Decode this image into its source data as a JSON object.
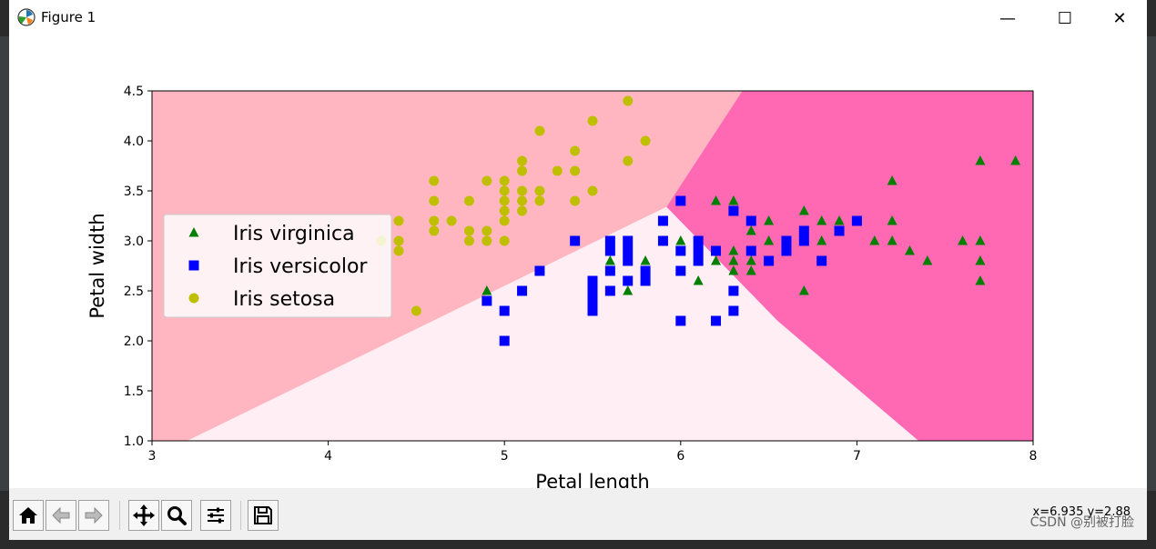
{
  "window": {
    "title": "Figure 1",
    "minimize": "—",
    "maximize": "☐",
    "close": "✕"
  },
  "colors": {
    "region_setosa": "#ffb6c1",
    "region_versicolor": "#ffeef4",
    "region_virginica": "#ff69b4",
    "virginica": "#007f00",
    "versicolor": "#0000ff",
    "setosa": "#bfbf00"
  },
  "toolbar": {
    "coords": "x=6.935 y=2.88",
    "buttons": [
      "home",
      "back",
      "forward",
      "pan",
      "zoom",
      "configure",
      "save"
    ]
  },
  "watermark": "CSDN @别被打脸",
  "chart_data": {
    "type": "scatter",
    "xlabel": "Petal length",
    "ylabel": "Petal width",
    "xlim": [
      3,
      8
    ],
    "ylim": [
      1.0,
      4.5
    ],
    "xticks": [
      "3",
      "4",
      "5",
      "6",
      "7",
      "8"
    ],
    "yticks": [
      "1.0",
      "1.5",
      "2.0",
      "2.5",
      "3.0",
      "3.5",
      "4.0",
      "4.5"
    ],
    "legend_position": "center-left",
    "decision_regions": {
      "setosa": [
        [
          3.0,
          1.0
        ],
        [
          3.2,
          1.0
        ],
        [
          5.92,
          3.34
        ],
        [
          6.35,
          4.5
        ],
        [
          3.0,
          4.5
        ]
      ],
      "versicolor": [
        [
          3.2,
          1.0
        ],
        [
          7.35,
          1.0
        ],
        [
          6.55,
          2.2
        ],
        [
          5.92,
          3.34
        ]
      ],
      "virginica": [
        [
          5.92,
          3.34
        ],
        [
          6.55,
          2.2
        ],
        [
          7.35,
          1.0
        ],
        [
          8.0,
          1.0
        ],
        [
          8.0,
          4.5
        ],
        [
          6.35,
          4.5
        ]
      ]
    },
    "series": [
      {
        "name": "Iris virginica",
        "marker": "triangle",
        "points": [
          [
            4.9,
            2.5
          ],
          [
            5.6,
            2.8
          ],
          [
            5.7,
            2.5
          ],
          [
            5.8,
            2.8
          ],
          [
            6.0,
            3.0
          ],
          [
            6.0,
            2.2
          ],
          [
            6.1,
            3.0
          ],
          [
            6.1,
            2.6
          ],
          [
            6.2,
            3.4
          ],
          [
            6.2,
            2.8
          ],
          [
            6.3,
            3.4
          ],
          [
            6.3,
            3.3
          ],
          [
            6.3,
            2.9
          ],
          [
            6.3,
            2.8
          ],
          [
            6.3,
            2.7
          ],
          [
            6.4,
            3.1
          ],
          [
            6.4,
            2.8
          ],
          [
            6.4,
            2.7
          ],
          [
            6.4,
            3.2
          ],
          [
            6.5,
            3.2
          ],
          [
            6.5,
            3.0
          ],
          [
            6.7,
            3.3
          ],
          [
            6.7,
            3.1
          ],
          [
            6.7,
            2.5
          ],
          [
            6.7,
            3.0
          ],
          [
            6.8,
            3.2
          ],
          [
            6.8,
            3.0
          ],
          [
            6.9,
            3.2
          ],
          [
            7.1,
            3.0
          ],
          [
            7.2,
            3.6
          ],
          [
            7.2,
            3.2
          ],
          [
            7.2,
            3.0
          ],
          [
            7.3,
            2.9
          ],
          [
            7.4,
            2.8
          ],
          [
            7.6,
            3.0
          ],
          [
            7.7,
            3.8
          ],
          [
            7.7,
            3.0
          ],
          [
            7.7,
            2.8
          ],
          [
            7.7,
            2.6
          ],
          [
            7.9,
            3.8
          ]
        ]
      },
      {
        "name": "Iris versicolor",
        "marker": "square",
        "points": [
          [
            4.9,
            2.4
          ],
          [
            5.0,
            2.3
          ],
          [
            5.0,
            2.0
          ],
          [
            5.1,
            2.5
          ],
          [
            5.2,
            2.7
          ],
          [
            5.4,
            3.0
          ],
          [
            5.5,
            2.6
          ],
          [
            5.5,
            2.5
          ],
          [
            5.5,
            2.4
          ],
          [
            5.5,
            2.3
          ],
          [
            5.6,
            3.0
          ],
          [
            5.6,
            2.9
          ],
          [
            5.6,
            2.7
          ],
          [
            5.6,
            2.5
          ],
          [
            5.7,
            3.0
          ],
          [
            5.7,
            2.9
          ],
          [
            5.7,
            2.8
          ],
          [
            5.7,
            2.6
          ],
          [
            5.8,
            2.7
          ],
          [
            5.8,
            2.6
          ],
          [
            5.9,
            3.2
          ],
          [
            5.9,
            3.0
          ],
          [
            6.0,
            3.4
          ],
          [
            6.0,
            2.9
          ],
          [
            6.0,
            2.7
          ],
          [
            6.0,
            2.2
          ],
          [
            6.1,
            3.0
          ],
          [
            6.1,
            2.9
          ],
          [
            6.1,
            2.8
          ],
          [
            6.2,
            2.9
          ],
          [
            6.2,
            2.2
          ],
          [
            6.3,
            3.3
          ],
          [
            6.3,
            2.5
          ],
          [
            6.3,
            2.3
          ],
          [
            6.4,
            3.2
          ],
          [
            6.4,
            2.9
          ],
          [
            6.5,
            2.8
          ],
          [
            6.6,
            3.0
          ],
          [
            6.6,
            2.9
          ],
          [
            6.7,
            3.1
          ],
          [
            6.7,
            3.0
          ],
          [
            6.8,
            2.8
          ],
          [
            6.9,
            3.1
          ],
          [
            7.0,
            3.2
          ]
        ]
      },
      {
        "name": "Iris setosa",
        "marker": "circle",
        "points": [
          [
            4.3,
            3.0
          ],
          [
            4.4,
            3.2
          ],
          [
            4.4,
            3.0
          ],
          [
            4.4,
            2.9
          ],
          [
            4.5,
            2.3
          ],
          [
            4.6,
            3.6
          ],
          [
            4.6,
            3.4
          ],
          [
            4.6,
            3.2
          ],
          [
            4.6,
            3.1
          ],
          [
            4.7,
            3.2
          ],
          [
            4.8,
            3.4
          ],
          [
            4.8,
            3.1
          ],
          [
            4.8,
            3.0
          ],
          [
            4.9,
            3.6
          ],
          [
            4.9,
            3.1
          ],
          [
            4.9,
            3.0
          ],
          [
            5.0,
            3.6
          ],
          [
            5.0,
            3.5
          ],
          [
            5.0,
            3.4
          ],
          [
            5.0,
            3.3
          ],
          [
            5.0,
            3.2
          ],
          [
            5.0,
            3.0
          ],
          [
            5.1,
            3.8
          ],
          [
            5.1,
            3.7
          ],
          [
            5.1,
            3.5
          ],
          [
            5.1,
            3.4
          ],
          [
            5.1,
            3.3
          ],
          [
            5.2,
            4.1
          ],
          [
            5.2,
            3.5
          ],
          [
            5.2,
            3.4
          ],
          [
            5.3,
            3.7
          ],
          [
            5.4,
            3.9
          ],
          [
            5.4,
            3.7
          ],
          [
            5.4,
            3.4
          ],
          [
            5.5,
            4.2
          ],
          [
            5.5,
            3.5
          ],
          [
            5.7,
            4.4
          ],
          [
            5.7,
            3.8
          ],
          [
            5.8,
            4.0
          ]
        ]
      }
    ]
  }
}
